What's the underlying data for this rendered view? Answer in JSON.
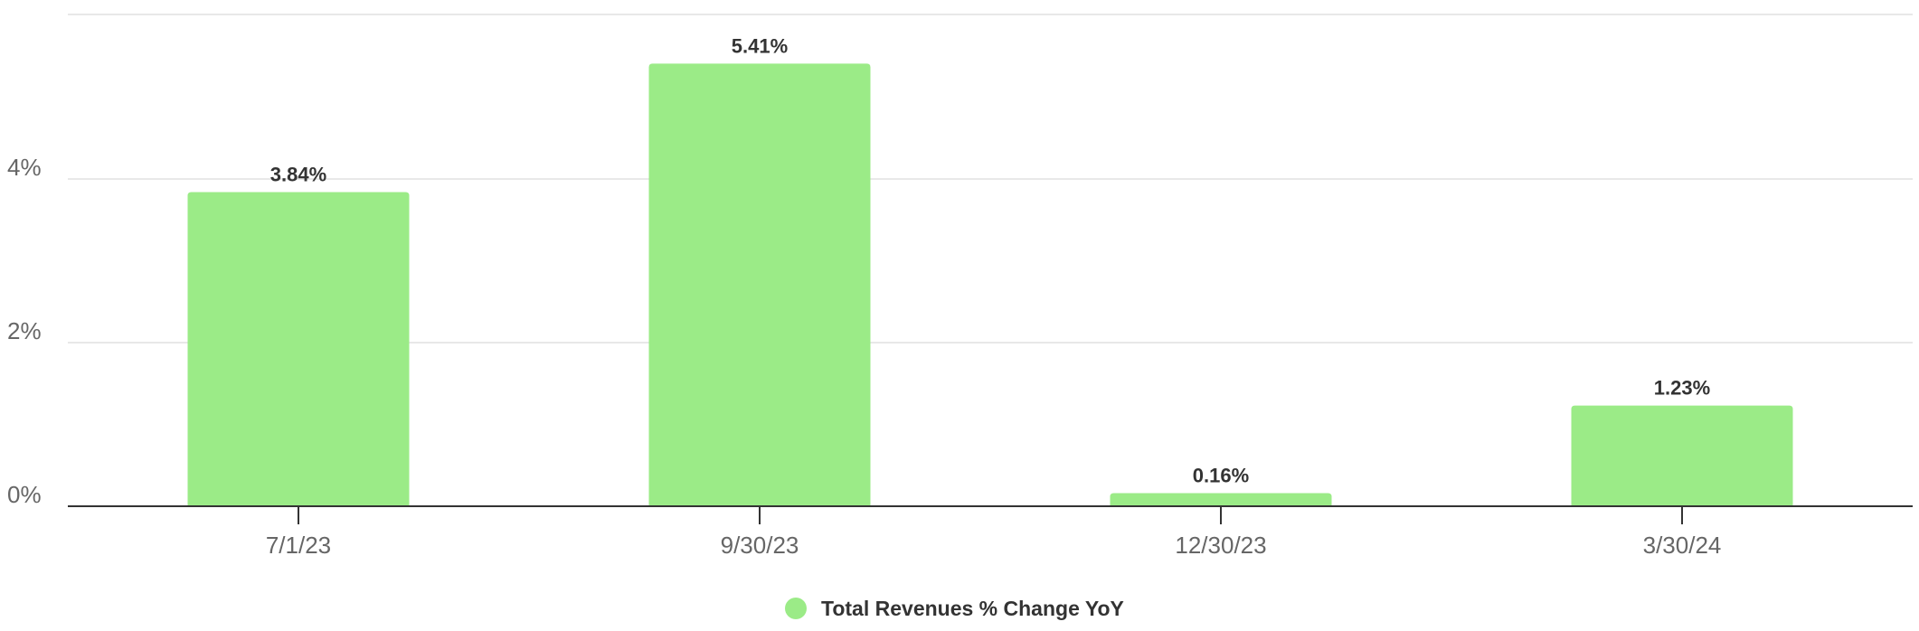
{
  "colors": {
    "bar": "#9beb87",
    "gridline": "#e0e0e0",
    "axis": "#333333",
    "tick_text": "#666666",
    "label_text": "#333333"
  },
  "chart_data": {
    "type": "bar",
    "categories": [
      "7/1/23",
      "9/30/23",
      "12/30/23",
      "3/30/24"
    ],
    "series": [
      {
        "name": "Total Revenues % Change YoY",
        "values": [
          3.84,
          5.41,
          0.16,
          1.23
        ],
        "data_labels": [
          "3.84%",
          "5.41%",
          "0.16%",
          "1.23%"
        ]
      }
    ],
    "y_ticks": [
      {
        "value": 0,
        "label": "0%"
      },
      {
        "value": 2,
        "label": "2%"
      },
      {
        "value": 4,
        "label": "4%"
      }
    ],
    "ylim": [
      0,
      6
    ],
    "grid": true,
    "legend_position": "bottom-center",
    "title": "",
    "xlabel": "",
    "ylabel": ""
  }
}
